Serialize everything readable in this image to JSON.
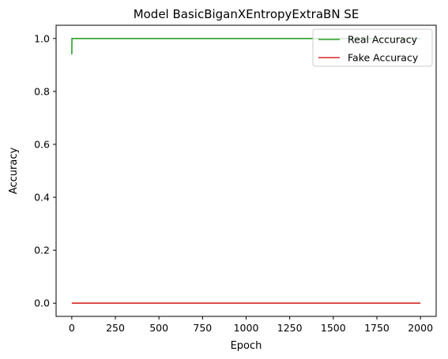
{
  "chart_data": {
    "type": "line",
    "title": "Model BasicBiganXEntropyExtraBN SE",
    "xlabel": "Epoch",
    "ylabel": "Accuracy",
    "xlim": [
      -90,
      2090
    ],
    "ylim": [
      -0.05,
      1.05
    ],
    "xticks": [
      0,
      250,
      500,
      750,
      1000,
      1250,
      1500,
      1750,
      2000
    ],
    "yticks": [
      0.0,
      0.2,
      0.4,
      0.6,
      0.8,
      1.0
    ],
    "xtick_labels": [
      "0",
      "250",
      "500",
      "750",
      "1000",
      "1250",
      "1500",
      "1750",
      "2000"
    ],
    "ytick_labels": [
      "0.0",
      "0.2",
      "0.4",
      "0.6",
      "0.8",
      "1.0"
    ],
    "grid": false,
    "legend_position": "top-right",
    "series": [
      {
        "name": "Real Accuracy",
        "color": "#2ca02c",
        "x": [
          0,
          1,
          2000
        ],
        "y": [
          0.94,
          1.0,
          1.0
        ]
      },
      {
        "name": "Fake Accuracy",
        "color": "#d62728",
        "x": [
          0,
          2000
        ],
        "y": [
          0.0,
          0.0
        ]
      }
    ]
  }
}
